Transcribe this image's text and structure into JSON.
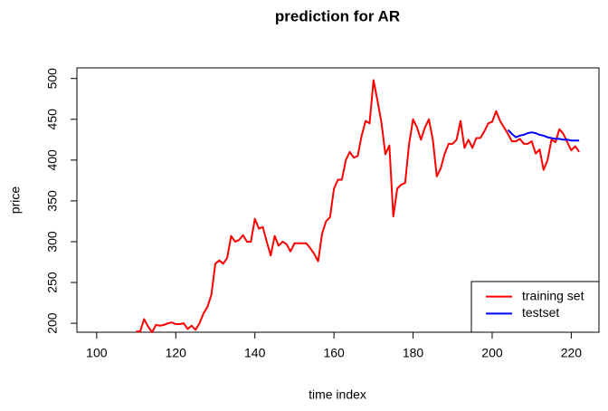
{
  "chart_data": {
    "type": "line",
    "title": "prediction for AR",
    "x_label": "time index",
    "y_label": "price",
    "xlim": [
      95,
      227
    ],
    "ylim": [
      189,
      513
    ],
    "xticks": [
      100,
      120,
      140,
      160,
      180,
      200,
      220
    ],
    "yticks": [
      200,
      250,
      300,
      350,
      400,
      450,
      500
    ],
    "legend": "bottom-right",
    "series": [
      {
        "name": "training set",
        "color": "#ff0000",
        "x": [
          110,
          111,
          112,
          113,
          114,
          115,
          116,
          117,
          118,
          119,
          120,
          121,
          122,
          123,
          124,
          125,
          126,
          127,
          128,
          129,
          130,
          131,
          132,
          133,
          134,
          135,
          136,
          137,
          138,
          139,
          140,
          141,
          142,
          143,
          144,
          145,
          146,
          147,
          148,
          149,
          150,
          151,
          152,
          153,
          154,
          155,
          156,
          157,
          158,
          159,
          160,
          161,
          162,
          163,
          164,
          165,
          166,
          167,
          168,
          169,
          170,
          171,
          172,
          173,
          174,
          175,
          176,
          177,
          178,
          179,
          180,
          181,
          182,
          183,
          184,
          185,
          186,
          187,
          188,
          189,
          190,
          191,
          192,
          193,
          194,
          195,
          196,
          197,
          198,
          199,
          200,
          201,
          202,
          203,
          204,
          205,
          206,
          207,
          208,
          209,
          210,
          211,
          212,
          213,
          214,
          215,
          216,
          217,
          218,
          219,
          220,
          221,
          222
        ],
        "values": [
          190,
          190,
          205,
          196,
          189,
          198,
          197,
          198,
          200,
          201,
          199,
          199,
          200,
          193,
          197,
          192,
          200,
          212,
          220,
          235,
          273,
          277,
          273,
          280,
          307,
          300,
          302,
          308,
          300,
          300,
          328,
          316,
          318,
          300,
          283,
          307,
          295,
          300,
          297,
          288,
          298,
          298,
          298,
          298,
          292,
          285,
          276,
          310,
          325,
          330,
          365,
          376,
          376,
          400,
          410,
          403,
          405,
          430,
          448,
          445,
          498,
          473,
          446,
          407,
          418,
          331,
          365,
          370,
          372,
          420,
          450,
          440,
          425,
          440,
          450,
          425,
          380,
          390,
          408,
          420,
          420,
          425,
          448,
          415,
          425,
          415,
          427,
          427,
          435,
          445,
          447,
          460,
          448,
          440,
          432,
          423,
          423,
          426,
          420,
          420,
          423,
          408,
          413,
          388,
          400,
          425,
          422,
          438,
          432,
          422,
          412,
          417,
          410
        ]
      },
      {
        "name": "testset",
        "color": "#0000ff",
        "x": [
          204,
          205,
          206,
          207,
          208,
          209,
          210,
          211,
          212,
          213,
          214,
          215,
          216,
          217,
          218,
          219,
          220,
          221,
          222
        ],
        "values": [
          437,
          432,
          428,
          430,
          431,
          433,
          434,
          433,
          431,
          430,
          428,
          427,
          426,
          426,
          425,
          425,
          424,
          424,
          424
        ]
      }
    ]
  }
}
